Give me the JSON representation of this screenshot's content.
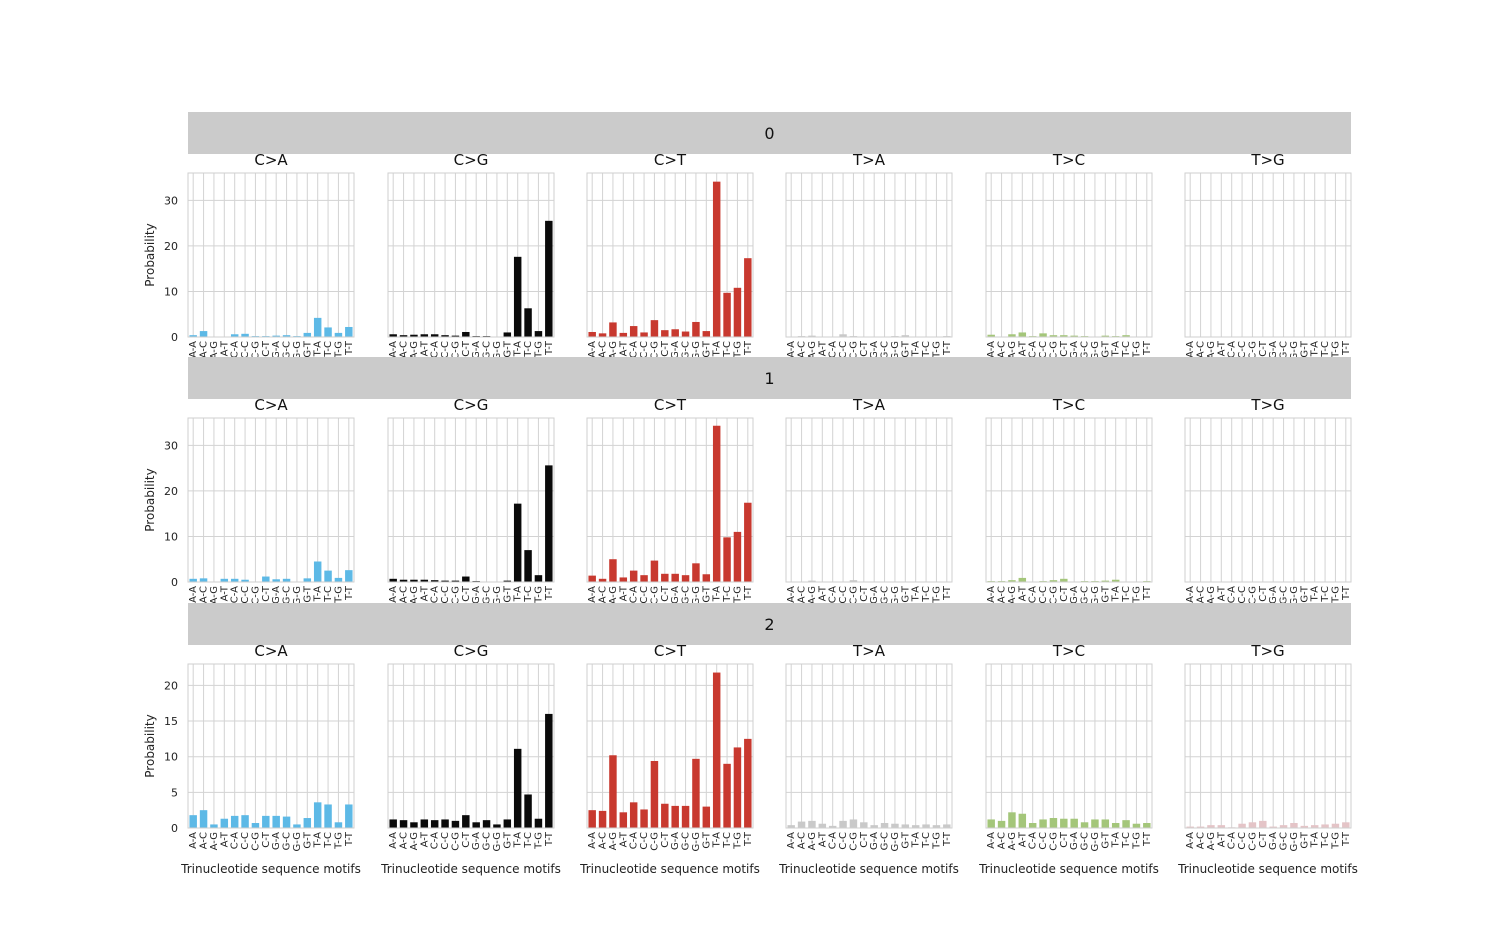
{
  "figure": {
    "ylabel": "Probability",
    "xlabel": "Trinucleotide sequence motifs"
  },
  "chart_data": {
    "type": "bar",
    "mutation_types": [
      "C>A",
      "C>G",
      "C>T",
      "T>A",
      "T>C",
      "T>G"
    ],
    "colors": [
      "#5DB9E6",
      "#0A0A0A",
      "#C8392F",
      "#C9C9C9",
      "#A4C67A",
      "#E4C4C7"
    ],
    "categories": [
      "A-A",
      "A-C",
      "A-G",
      "A-T",
      "C-A",
      "C-C",
      "C-G",
      "C-T",
      "G-A",
      "G-C",
      "G-G",
      "G-T",
      "T-A",
      "T-C",
      "T-G",
      "T-T"
    ],
    "ylabel": "Probability",
    "xlabel": "Trinucleotide sequence motifs",
    "grid": true,
    "groups": [
      {
        "title": "0",
        "ylim": [
          0,
          36
        ],
        "yticks": [
          0,
          10,
          20,
          30
        ],
        "series": [
          {
            "name": "C>A",
            "values": [
              0.4,
              1.3,
              0.1,
              0.0,
              0.6,
              0.7,
              0.2,
              0.2,
              0.3,
              0.4,
              0.2,
              0.9,
              4.2,
              2.1,
              0.9,
              2.2
            ]
          },
          {
            "name": "C>G",
            "values": [
              0.6,
              0.4,
              0.5,
              0.6,
              0.6,
              0.4,
              0.3,
              1.1,
              0.2,
              0.2,
              0.1,
              1.0,
              17.6,
              6.3,
              1.3,
              25.5
            ]
          },
          {
            "name": "C>T",
            "values": [
              1.1,
              0.8,
              3.2,
              0.9,
              2.4,
              1.0,
              3.7,
              1.5,
              1.7,
              1.2,
              3.3,
              1.3,
              34.1,
              9.7,
              10.8,
              17.3
            ]
          },
          {
            "name": "T>A",
            "values": [
              0.1,
              0.2,
              0.3,
              0.1,
              0.1,
              0.6,
              0.2,
              0.1,
              0.1,
              0.1,
              0.2,
              0.4,
              0.1,
              0.1,
              0.1,
              0.2
            ]
          },
          {
            "name": "T>C",
            "values": [
              0.5,
              0.1,
              0.6,
              1.0,
              0.2,
              0.8,
              0.4,
              0.4,
              0.3,
              0.2,
              0.1,
              0.3,
              0.2,
              0.4,
              0.1,
              0.1
            ]
          },
          {
            "name": "T>G",
            "values": [
              0.05,
              0.05,
              0.05,
              0.1,
              0.05,
              0.05,
              0.1,
              0.1,
              0.05,
              0.05,
              0.05,
              0.05,
              0.05,
              0.05,
              0.05,
              0.1
            ]
          }
        ]
      },
      {
        "title": "1",
        "ylim": [
          0,
          36
        ],
        "yticks": [
          0,
          10,
          20,
          30
        ],
        "series": [
          {
            "name": "C>A",
            "values": [
              0.7,
              0.8,
              0.1,
              0.7,
              0.7,
              0.5,
              0.1,
              1.2,
              0.6,
              0.7,
              0.1,
              0.8,
              4.5,
              2.5,
              0.9,
              2.6
            ]
          },
          {
            "name": "C>G",
            "values": [
              0.7,
              0.5,
              0.5,
              0.5,
              0.4,
              0.3,
              0.3,
              1.2,
              0.2,
              0.1,
              0.1,
              0.3,
              17.2,
              7.0,
              1.5,
              25.6
            ]
          },
          {
            "name": "C>T",
            "values": [
              1.4,
              0.7,
              5.0,
              1.0,
              2.5,
              1.5,
              4.7,
              1.8,
              1.8,
              1.5,
              4.1,
              1.7,
              34.3,
              9.8,
              11.0,
              17.4
            ]
          },
          {
            "name": "T>A",
            "values": [
              0.1,
              0.1,
              0.3,
              0.1,
              0.1,
              0.1,
              0.4,
              0.1,
              0.1,
              0.1,
              0.1,
              0.1,
              0.1,
              0.1,
              0.1,
              0.1
            ]
          },
          {
            "name": "T>C",
            "values": [
              0.2,
              0.2,
              0.4,
              0.9,
              0.1,
              0.2,
              0.4,
              0.7,
              0.1,
              0.2,
              0.2,
              0.3,
              0.5,
              0.1,
              0.1,
              0.2
            ]
          },
          {
            "name": "T>G",
            "values": [
              0.05,
              0.05,
              0.05,
              0.05,
              0.05,
              0.05,
              0.05,
              0.05,
              0.1,
              0.05,
              0.05,
              0.05,
              0.05,
              0.05,
              0.1,
              0.05
            ]
          }
        ]
      },
      {
        "title": "2",
        "ylim": [
          0,
          23
        ],
        "yticks": [
          0,
          5,
          10,
          15,
          20
        ],
        "series": [
          {
            "name": "C>A",
            "values": [
              1.8,
              2.5,
              0.5,
              1.3,
              1.7,
              1.8,
              0.7,
              1.7,
              1.7,
              1.6,
              0.5,
              1.4,
              3.6,
              3.3,
              0.8,
              3.3
            ]
          },
          {
            "name": "C>G",
            "values": [
              1.2,
              1.1,
              0.8,
              1.2,
              1.1,
              1.2,
              1.0,
              1.8,
              0.8,
              1.1,
              0.5,
              1.2,
              11.1,
              4.7,
              1.3,
              16.0
            ]
          },
          {
            "name": "C>T",
            "values": [
              2.5,
              2.4,
              10.2,
              2.2,
              3.6,
              2.6,
              9.4,
              3.4,
              3.1,
              3.1,
              9.7,
              3.0,
              21.8,
              9.0,
              11.3,
              12.5
            ]
          },
          {
            "name": "T>A",
            "values": [
              0.4,
              0.9,
              1.0,
              0.6,
              0.3,
              1.0,
              1.2,
              0.8,
              0.4,
              0.7,
              0.6,
              0.5,
              0.4,
              0.5,
              0.4,
              0.5
            ]
          },
          {
            "name": "T>C",
            "values": [
              1.2,
              1.0,
              2.2,
              2.0,
              0.7,
              1.2,
              1.4,
              1.3,
              1.3,
              0.8,
              1.2,
              1.2,
              0.7,
              1.1,
              0.6,
              0.7
            ]
          },
          {
            "name": "T>G",
            "values": [
              0.2,
              0.2,
              0.4,
              0.4,
              0.1,
              0.6,
              0.8,
              1.0,
              0.2,
              0.4,
              0.7,
              0.3,
              0.4,
              0.5,
              0.6,
              0.8
            ]
          }
        ]
      }
    ]
  }
}
